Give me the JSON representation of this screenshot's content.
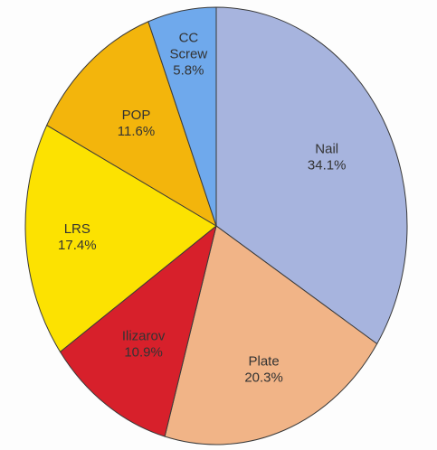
{
  "chart_data": {
    "type": "pie",
    "title": "",
    "start_angle_deg": 0,
    "direction": "clockwise",
    "slices": [
      {
        "label": "Nail",
        "value": 34.1,
        "value_label": "34.1%",
        "color": "#A7B4DE"
      },
      {
        "label": "Plate",
        "value": 20.3,
        "value_label": "20.3%",
        "color": "#F1B487"
      },
      {
        "label": "Ilizarov",
        "value": 10.9,
        "value_label": "10.9%",
        "color": "#D7202B"
      },
      {
        "label": "LRS",
        "value": 17.4,
        "value_label": "17.4%",
        "color": "#FCE201"
      },
      {
        "label": "POP",
        "value": 11.6,
        "value_label": "11.6%",
        "color": "#F3B50C"
      },
      {
        "label": "CC Screw",
        "label_lines": [
          "CC",
          "Screw"
        ],
        "value": 5.8,
        "value_label": "5.8%",
        "color": "#6FA9EC"
      }
    ]
  }
}
